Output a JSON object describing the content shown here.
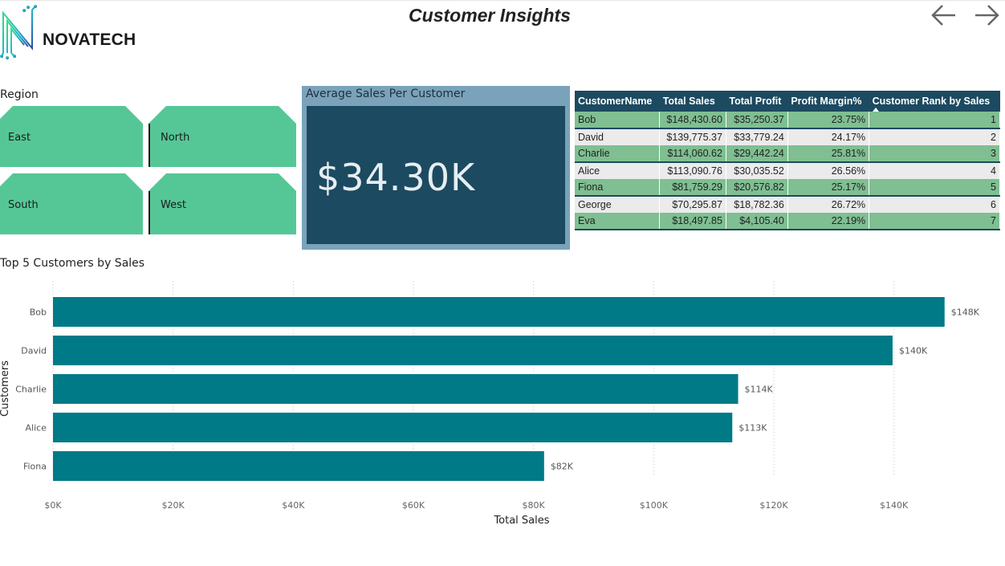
{
  "header": {
    "title": "Customer Insights",
    "logo_text": "NOVATECH",
    "back_icon": "arrow-left-icon",
    "forward_icon": "arrow-right-icon"
  },
  "colors": {
    "tile": "#55c796",
    "kpi_outer": "#7aa3bb",
    "kpi_inner": "#1c4a60",
    "table_header": "#1c4a60",
    "row_green": "#7fbf92",
    "row_gray": "#ebebeb",
    "bar": "#007a87"
  },
  "region_slicer": {
    "label": "Region",
    "tiles": [
      "East",
      "North",
      "South",
      "West"
    ]
  },
  "kpi": {
    "label": "Average Sales Per Customer",
    "value": "$34.30K"
  },
  "table": {
    "columns": [
      "CustomerName",
      "Total Sales",
      "Total Profit",
      "Profit Margin%",
      "Customer Rank by Sales"
    ],
    "rows": [
      [
        "Bob",
        "$148,430.60",
        "$35,250.37",
        "23.75%",
        "1"
      ],
      [
        "David",
        "$139,775.37",
        "$33,779.24",
        "24.17%",
        "2"
      ],
      [
        "Charlie",
        "$114,060.62",
        "$29,442.24",
        "25.81%",
        "3"
      ],
      [
        "Alice",
        "$113,090.76",
        "$30,035.52",
        "26.56%",
        "4"
      ],
      [
        "Fiona",
        "$81,759.29",
        "$20,576.82",
        "25.17%",
        "5"
      ],
      [
        "George",
        "$70,295.87",
        "$18,782.36",
        "26.72%",
        "6"
      ],
      [
        "Eva",
        "$18,497.85",
        "$4,105.40",
        "22.19%",
        "7"
      ]
    ]
  },
  "chart_data": {
    "type": "bar",
    "orientation": "horizontal",
    "title": "Top 5 Customers by Sales",
    "xlabel": "Total Sales",
    "ylabel": "Customers",
    "categories": [
      "Bob",
      "David",
      "Charlie",
      "Alice",
      "Fiona"
    ],
    "values": [
      148430.6,
      139775.37,
      114060.62,
      113090.76,
      81759.29
    ],
    "data_labels": [
      "$148K",
      "$140K",
      "$114K",
      "$113K",
      "$82K"
    ],
    "x_ticks": [
      "$0K",
      "$20K",
      "$40K",
      "$60K",
      "$80K",
      "$100K",
      "$120K",
      "$140K"
    ],
    "xlim": [
      0,
      150000
    ],
    "grid": "vertical-dotted",
    "legend": "none"
  }
}
